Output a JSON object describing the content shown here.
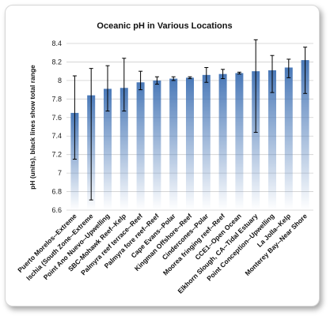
{
  "chart_data": {
    "type": "bar",
    "title": "Oceanic pH in Various Locations",
    "xlabel": "",
    "ylabel": "pH (units), black lines show total range",
    "ylim": [
      6.6,
      8.4
    ],
    "yticks": [
      6.6,
      6.8,
      7,
      7.2,
      7.4,
      7.6,
      7.8,
      8,
      8.2,
      8.4
    ],
    "grid": true,
    "legend": "none",
    "bar_color": "#4a79b8",
    "categories": [
      "Puerto Morelos--Extreme",
      "Ischia (South Zone--Extreme",
      "Point Ano Nuevo--Upwelling",
      "SBC-Mohawk Reef--Kelp",
      "Palmyra reef terrace--Reef",
      "Palmyra fore reef--Reef",
      "Cape Evans--Polar",
      "Kingman Offshore--Reef",
      "Cindercones--Polar",
      "Moorea fringing reef--Reef",
      "CCE1--Open Ocean",
      "Elkhorn Slough, CA--Tidal Estuary",
      "Point Conception--Upwelling",
      "La Jolla--Kelp",
      "Monterey Bay--Near Shore"
    ],
    "values": [
      7.65,
      7.84,
      7.91,
      7.92,
      7.98,
      8.0,
      8.02,
      8.03,
      8.06,
      8.07,
      8.08,
      8.1,
      8.11,
      8.14,
      8.22
    ],
    "range_min": [
      7.15,
      6.71,
      7.67,
      7.67,
      7.9,
      7.96,
      8.0,
      8.02,
      7.98,
      8.02,
      8.07,
      7.44,
      7.87,
      8.03,
      7.86
    ],
    "range_max": [
      8.05,
      8.13,
      8.16,
      8.24,
      8.1,
      8.04,
      8.04,
      8.04,
      8.14,
      8.12,
      8.09,
      8.44,
      8.27,
      8.23,
      8.36
    ]
  }
}
